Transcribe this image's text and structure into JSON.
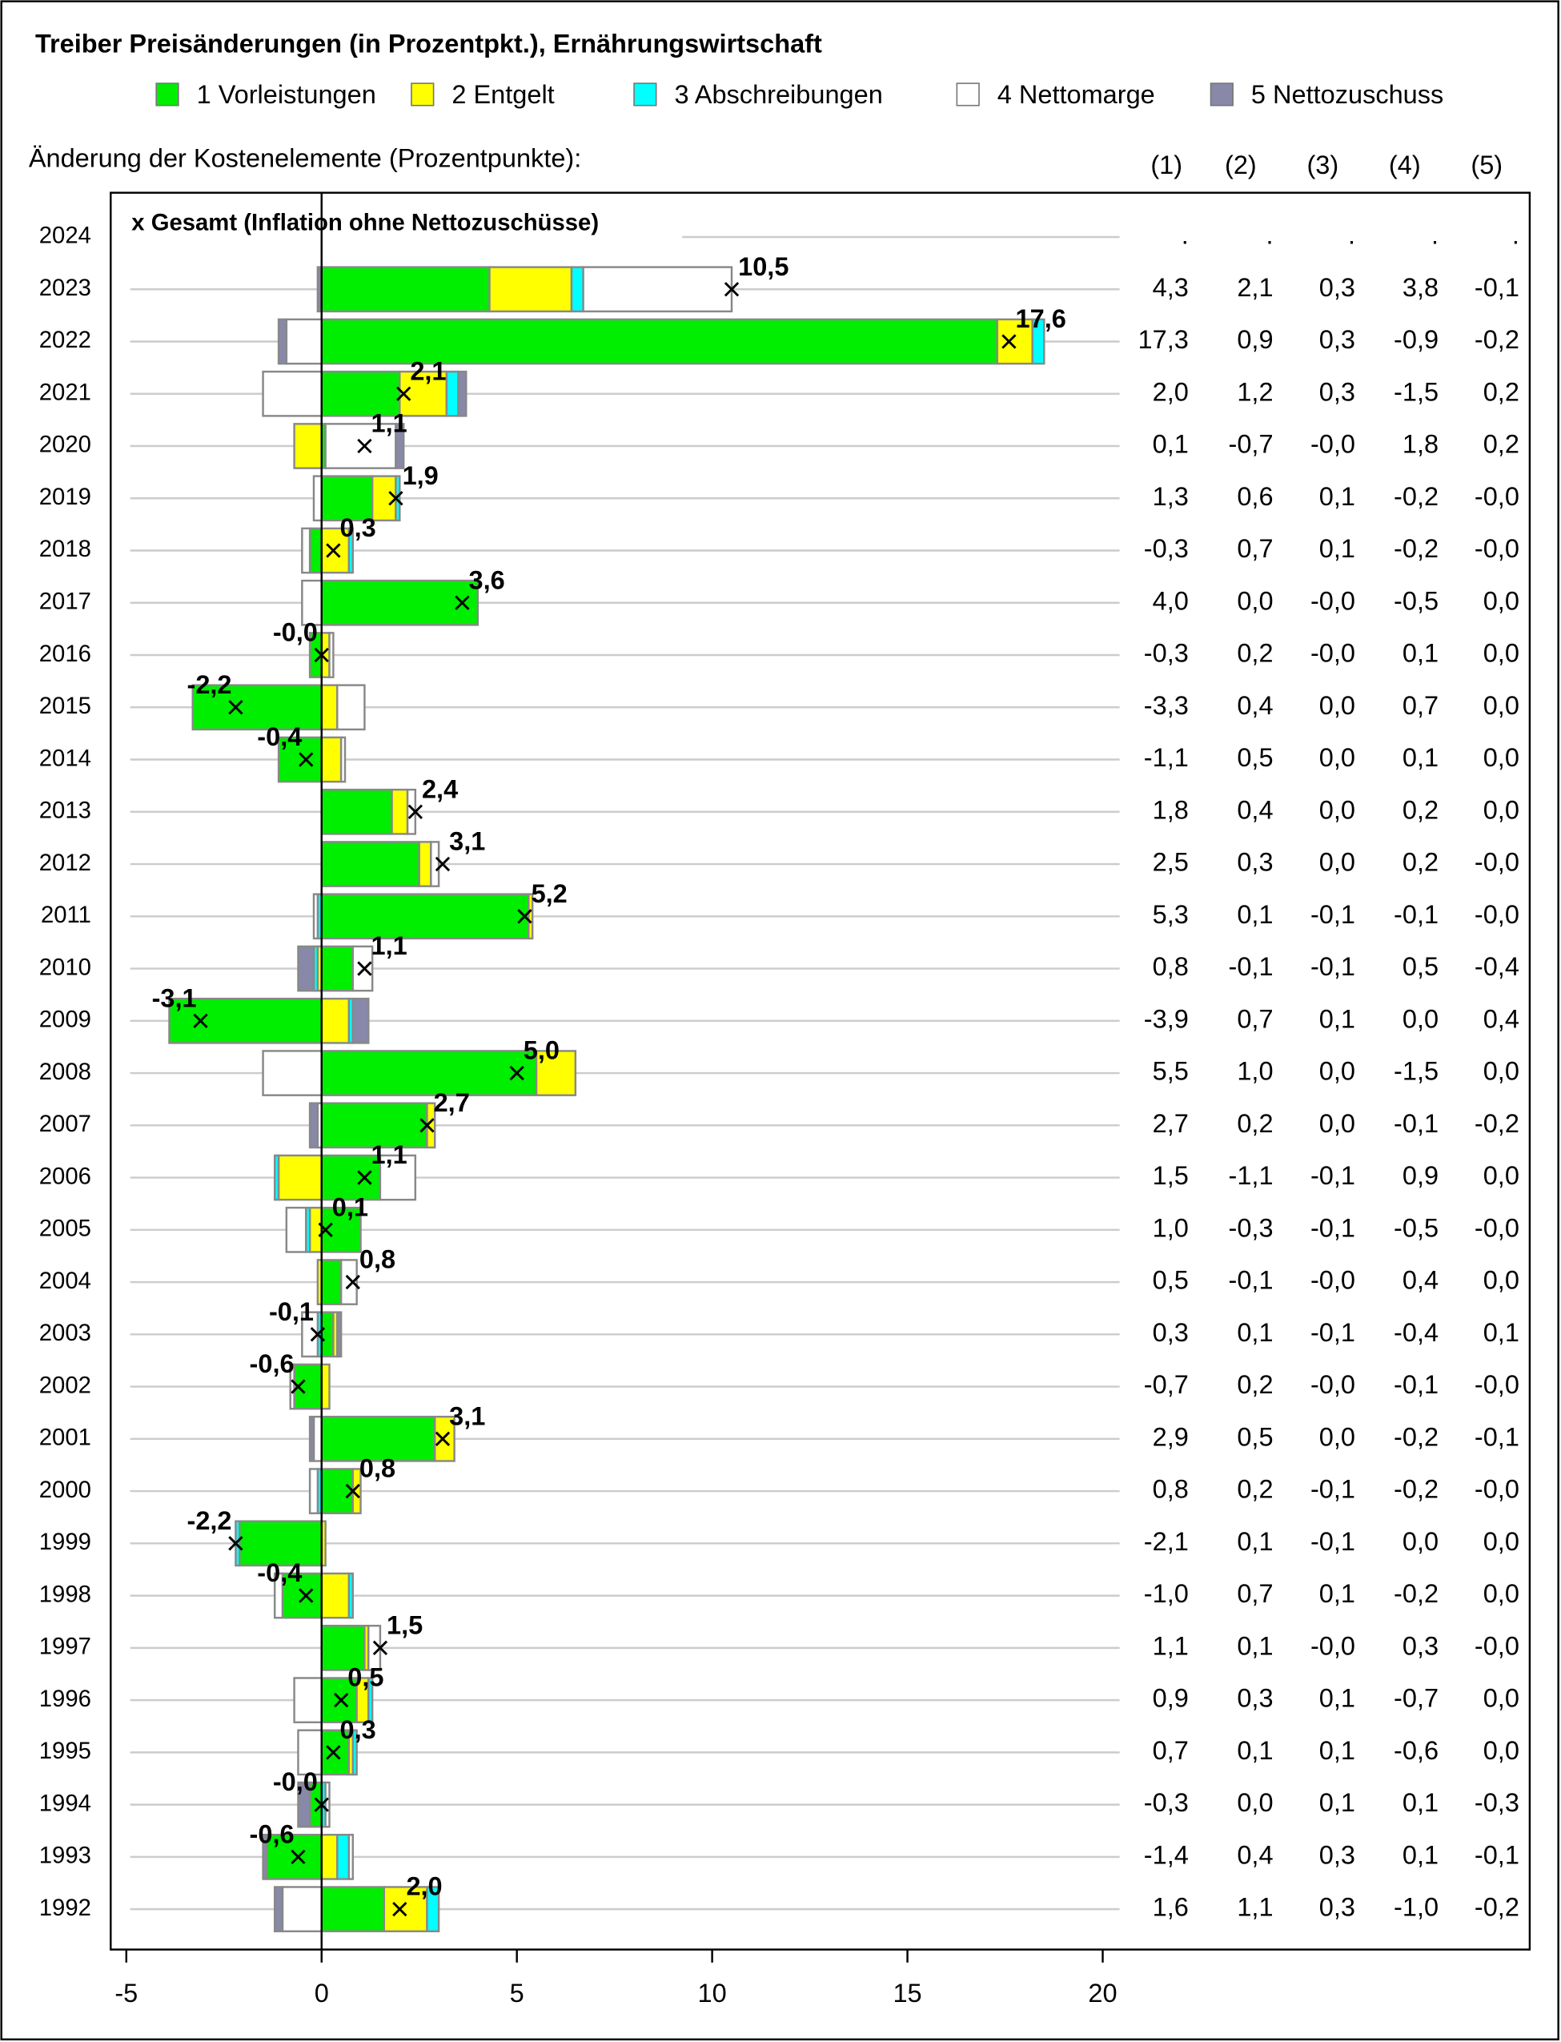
{
  "chart_data": {
    "type": "stacked-bar-horizontal",
    "title": "Treiber Preisänderungen (in Prozentpkt.), Ernährungswirtschaft",
    "table_caption": "Änderung der Kostenelemente (Prozentpunkte):",
    "table_columns": [
      "(1)",
      "(2)",
      "(3)",
      "(4)",
      "(5)"
    ],
    "categories": [
      "2024",
      "2023",
      "2022",
      "2021",
      "2020",
      "2019",
      "2018",
      "2017",
      "2016",
      "2015",
      "2014",
      "2013",
      "2012",
      "2011",
      "2010",
      "2009",
      "2008",
      "2007",
      "2006",
      "2005",
      "2004",
      "2003",
      "2002",
      "2001",
      "2000",
      "1999",
      "1998",
      "1997",
      "1996",
      "1995",
      "1994",
      "1993",
      "1992"
    ],
    "series": [
      {
        "name": "1 Vorleistungen",
        "color": "#00ee00",
        "values": [
          null,
          4.3,
          17.3,
          2.0,
          0.1,
          1.3,
          -0.3,
          4.0,
          -0.3,
          -3.3,
          -1.1,
          1.8,
          2.5,
          5.3,
          0.8,
          -3.9,
          5.5,
          2.7,
          1.5,
          1.0,
          0.5,
          0.3,
          -0.7,
          2.9,
          0.8,
          -2.1,
          -1.0,
          1.1,
          0.9,
          0.7,
          -0.3,
          -1.4,
          1.6
        ],
        "value_labels": [
          ".",
          "4,3",
          "17,3",
          "2,0",
          "0,1",
          "1,3",
          "-0,3",
          "4,0",
          "-0,3",
          "-3,3",
          "-1,1",
          "1,8",
          "2,5",
          "5,3",
          "0,8",
          "-3,9",
          "5,5",
          "2,7",
          "1,5",
          "1,0",
          "0,5",
          "0,3",
          "-0,7",
          "2,9",
          "0,8",
          "-2,1",
          "-1,0",
          "1,1",
          "0,9",
          "0,7",
          "-0,3",
          "-1,4",
          "1,6"
        ]
      },
      {
        "name": "2 Entgelt",
        "color": "#ffff00",
        "values": [
          null,
          2.1,
          0.9,
          1.2,
          -0.7,
          0.6,
          0.7,
          0.0,
          0.2,
          0.4,
          0.5,
          0.4,
          0.3,
          0.1,
          -0.1,
          0.7,
          1.0,
          0.2,
          -1.1,
          -0.3,
          -0.1,
          0.1,
          0.2,
          0.5,
          0.2,
          0.1,
          0.7,
          0.1,
          0.3,
          0.1,
          0.0,
          0.4,
          1.1
        ],
        "value_labels": [
          ".",
          "2,1",
          "0,9",
          "1,2",
          "-0,7",
          "0,6",
          "0,7",
          "0,0",
          "0,2",
          "0,4",
          "0,5",
          "0,4",
          "0,3",
          "0,1",
          "-0,1",
          "0,7",
          "1,0",
          "0,2",
          "-1,1",
          "-0,3",
          "-0,1",
          "0,1",
          "0,2",
          "0,5",
          "0,2",
          "0,1",
          "0,7",
          "0,1",
          "0,3",
          "0,1",
          "0,0",
          "0,4",
          "1,1"
        ]
      },
      {
        "name": "3 Abschreibungen",
        "color": "#00ffff",
        "values": [
          null,
          0.3,
          0.3,
          0.3,
          -0.0,
          0.1,
          0.1,
          -0.0,
          -0.0,
          0.0,
          0.0,
          0.0,
          0.0,
          -0.1,
          -0.1,
          0.1,
          0.0,
          0.0,
          -0.1,
          -0.1,
          -0.0,
          -0.1,
          -0.0,
          0.0,
          -0.1,
          -0.1,
          0.1,
          -0.0,
          0.1,
          0.1,
          0.1,
          0.3,
          0.3
        ],
        "value_labels": [
          ".",
          "0,3",
          "0,3",
          "0,3",
          "-0,0",
          "0,1",
          "0,1",
          "-0,0",
          "-0,0",
          "0,0",
          "0,0",
          "0,0",
          "0,0",
          "-0,1",
          "-0,1",
          "0,1",
          "0,0",
          "0,0",
          "-0,1",
          "-0,1",
          "-0,0",
          "-0,1",
          "-0,0",
          "0,0",
          "-0,1",
          "-0,1",
          "0,1",
          "-0,0",
          "0,1",
          "0,1",
          "0,1",
          "0,3",
          "0,3"
        ]
      },
      {
        "name": "4 Nettomarge",
        "color": "#ffffff",
        "values": [
          null,
          3.8,
          -0.9,
          -1.5,
          1.8,
          -0.2,
          -0.2,
          -0.5,
          0.1,
          0.7,
          0.1,
          0.2,
          0.2,
          -0.1,
          0.5,
          0.0,
          -1.5,
          -0.1,
          0.9,
          -0.5,
          0.4,
          -0.4,
          -0.1,
          -0.2,
          -0.2,
          0.0,
          -0.2,
          0.3,
          -0.7,
          -0.6,
          0.1,
          0.1,
          -1.0
        ],
        "value_labels": [
          ".",
          "3,8",
          "-0,9",
          "-1,5",
          "1,8",
          "-0,2",
          "-0,2",
          "-0,5",
          "0,1",
          "0,7",
          "0,1",
          "0,2",
          "0,2",
          "-0,1",
          "0,5",
          "0,0",
          "-1,5",
          "-0,1",
          "0,9",
          "-0,5",
          "0,4",
          "-0,4",
          "-0,1",
          "-0,2",
          "-0,2",
          "0,0",
          "-0,2",
          "0,3",
          "-0,7",
          "-0,6",
          "0,1",
          "0,1",
          "-1,0"
        ]
      },
      {
        "name": "5 Nettozuschuss",
        "color": "#8888a8",
        "values": [
          null,
          -0.1,
          -0.2,
          0.2,
          0.2,
          -0.0,
          -0.0,
          0.0,
          0.0,
          0.0,
          0.0,
          0.0,
          -0.0,
          -0.0,
          -0.4,
          0.4,
          0.0,
          -0.2,
          0.0,
          -0.0,
          0.0,
          0.1,
          -0.0,
          -0.1,
          -0.0,
          0.0,
          0.0,
          -0.0,
          0.0,
          0.0,
          -0.3,
          -0.1,
          -0.2
        ],
        "value_labels": [
          ".",
          "-0,1",
          "-0,2",
          "0,2",
          "0,2",
          "-0,0",
          "-0,0",
          "0,0",
          "0,0",
          "0,0",
          "0,0",
          "0,0",
          "-0,0",
          "-0,0",
          "-0,4",
          "0,4",
          "0,0",
          "-0,2",
          "0,0",
          "-0,0",
          "0,0",
          "0,1",
          "-0,0",
          "-0,1",
          "-0,0",
          "0,0",
          "0,0",
          "-0,0",
          "0,0",
          "0,0",
          "-0,3",
          "-0,1",
          "-0,2"
        ]
      }
    ],
    "total": {
      "name": "x Gesamt (Inflation ohne Nettozuschüsse)",
      "values": [
        null,
        10.5,
        17.6,
        2.1,
        1.1,
        1.9,
        0.3,
        3.6,
        -0.0,
        -2.2,
        -0.4,
        2.4,
        3.1,
        5.2,
        1.1,
        -3.1,
        5.0,
        2.7,
        1.1,
        0.1,
        0.8,
        -0.1,
        -0.6,
        3.1,
        0.8,
        -2.2,
        -0.4,
        1.5,
        0.5,
        0.3,
        -0.0,
        -0.6,
        2.0
      ],
      "value_labels": [
        null,
        "10,5",
        "17,6",
        "2,1",
        "1,1",
        "1,9",
        "0,3",
        "3,6",
        "-0,0",
        "-2,2",
        "-0,4",
        "2,4",
        "3,1",
        "5,2",
        "1,1",
        "-3,1",
        "5,0",
        "2,7",
        "1,1",
        "0,1",
        "0,8",
        "-0,1",
        "-0,6",
        "3,1",
        "0,8",
        "-2,2",
        "-0,4",
        "1,5",
        "0,5",
        "0,3",
        "-0,0",
        "-0,6",
        "2,0"
      ]
    },
    "xlim": [
      -5.4,
      20.4
    ],
    "xticks": [
      -5,
      0,
      5,
      10,
      15,
      20
    ],
    "grid": true
  }
}
